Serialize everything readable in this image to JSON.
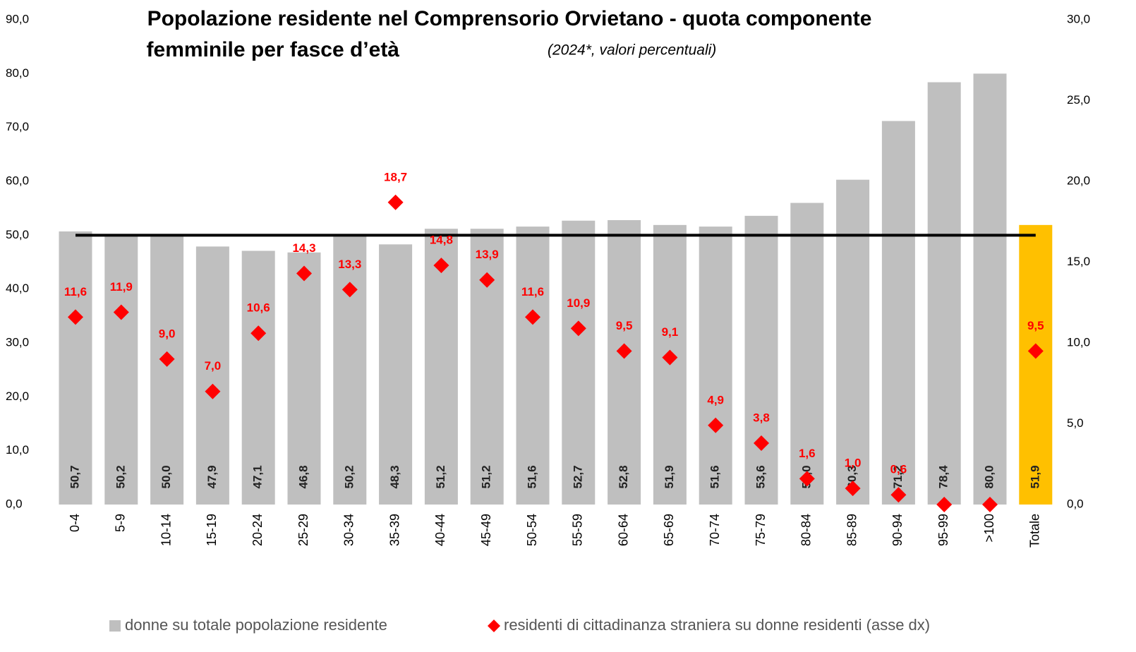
{
  "chart_data": {
    "type": "bar_scatter",
    "title": [
      "Popolazione residente nel Comprensorio Orvietano - quota componente",
      "femminile per fasce d’età"
    ],
    "subtitle": "(2024*, valori percentuali)",
    "categories": [
      "0-4",
      "5-9",
      "10-14",
      "15-19",
      "20-24",
      "25-29",
      "30-34",
      "35-39",
      "40-44",
      "45-49",
      "50-54",
      "55-59",
      "60-64",
      "65-69",
      "70-74",
      "75-79",
      "80-84",
      "85-89",
      "90-94",
      "95-99",
      ">100",
      "Totale"
    ],
    "series": [
      {
        "name": "donne su totale popolazione residente",
        "type": "bar",
        "color": "#bfbfbf",
        "bar_colors": [
          "#bfbfbf",
          "#bfbfbf",
          "#bfbfbf",
          "#bfbfbf",
          "#bfbfbf",
          "#bfbfbf",
          "#bfbfbf",
          "#bfbfbf",
          "#bfbfbf",
          "#bfbfbf",
          "#bfbfbf",
          "#bfbfbf",
          "#bfbfbf",
          "#bfbfbf",
          "#bfbfbf",
          "#bfbfbf",
          "#bfbfbf",
          "#bfbfbf",
          "#bfbfbf",
          "#bfbfbf",
          "#bfbfbf",
          "#ffc000"
        ],
        "values": [
          50.7,
          50.2,
          50.0,
          47.9,
          47.1,
          46.8,
          50.2,
          48.3,
          51.2,
          51.2,
          51.6,
          52.7,
          52.8,
          51.9,
          51.6,
          53.6,
          56.0,
          60.3,
          71.2,
          78.4,
          80.0,
          51.9
        ],
        "value_labels": [
          "50,7",
          "50,2",
          "50,0",
          "47,9",
          "47,1",
          "46,8",
          "50,2",
          "48,3",
          "51,2",
          "51,2",
          "51,6",
          "52,7",
          "52,8",
          "51,9",
          "51,6",
          "53,6",
          "56,0",
          "60,3",
          "71,2",
          "78,4",
          "80,0",
          "51,9"
        ]
      },
      {
        "name": "residenti di cittadinanza straniera su donne residenti (asse dx)",
        "type": "scatter",
        "axis": "y2",
        "color": "#ff0000",
        "values": [
          11.6,
          11.9,
          9.0,
          7.0,
          10.6,
          14.3,
          13.3,
          18.7,
          14.8,
          13.9,
          11.6,
          10.9,
          9.5,
          9.1,
          4.9,
          3.8,
          1.6,
          1.0,
          0.6,
          0,
          0,
          9.5
        ],
        "value_labels": [
          "11,6",
          "11,9",
          "9,0",
          "7,0",
          "10,6",
          "14,3",
          "13,3",
          "18,7",
          "14,8",
          "13,9",
          "11,6",
          "10,9",
          "9,5",
          "9,1",
          "4,9",
          "3,8",
          "1,6",
          "1,0",
          "0,6",
          null,
          null,
          "9,5"
        ]
      }
    ],
    "reference_line": {
      "value": 50,
      "color": "#000000"
    },
    "ylim": [
      0,
      90
    ],
    "yticks": [
      {
        "value": 0,
        "label": "0,0"
      },
      {
        "value": 10,
        "label": "10,0"
      },
      {
        "value": 20,
        "label": "20,0"
      },
      {
        "value": 30,
        "label": "30,0"
      },
      {
        "value": 40,
        "label": "40,0"
      },
      {
        "value": 50,
        "label": "50,0"
      },
      {
        "value": 60,
        "label": "60,0"
      },
      {
        "value": 70,
        "label": "70,0"
      },
      {
        "value": 80,
        "label": "80,0"
      },
      {
        "value": 90,
        "label": "90,0"
      }
    ],
    "y2lim": [
      0,
      30
    ],
    "y2ticks": [
      {
        "value": 0,
        "label": "0,0"
      },
      {
        "value": 5,
        "label": "5,0"
      },
      {
        "value": 10,
        "label": "10,0"
      },
      {
        "value": 15,
        "label": "15,0"
      },
      {
        "value": 20,
        "label": "20,0"
      },
      {
        "value": 25,
        "label": "25,0"
      },
      {
        "value": 30,
        "label": "30,0"
      }
    ],
    "legend": "bottom"
  }
}
